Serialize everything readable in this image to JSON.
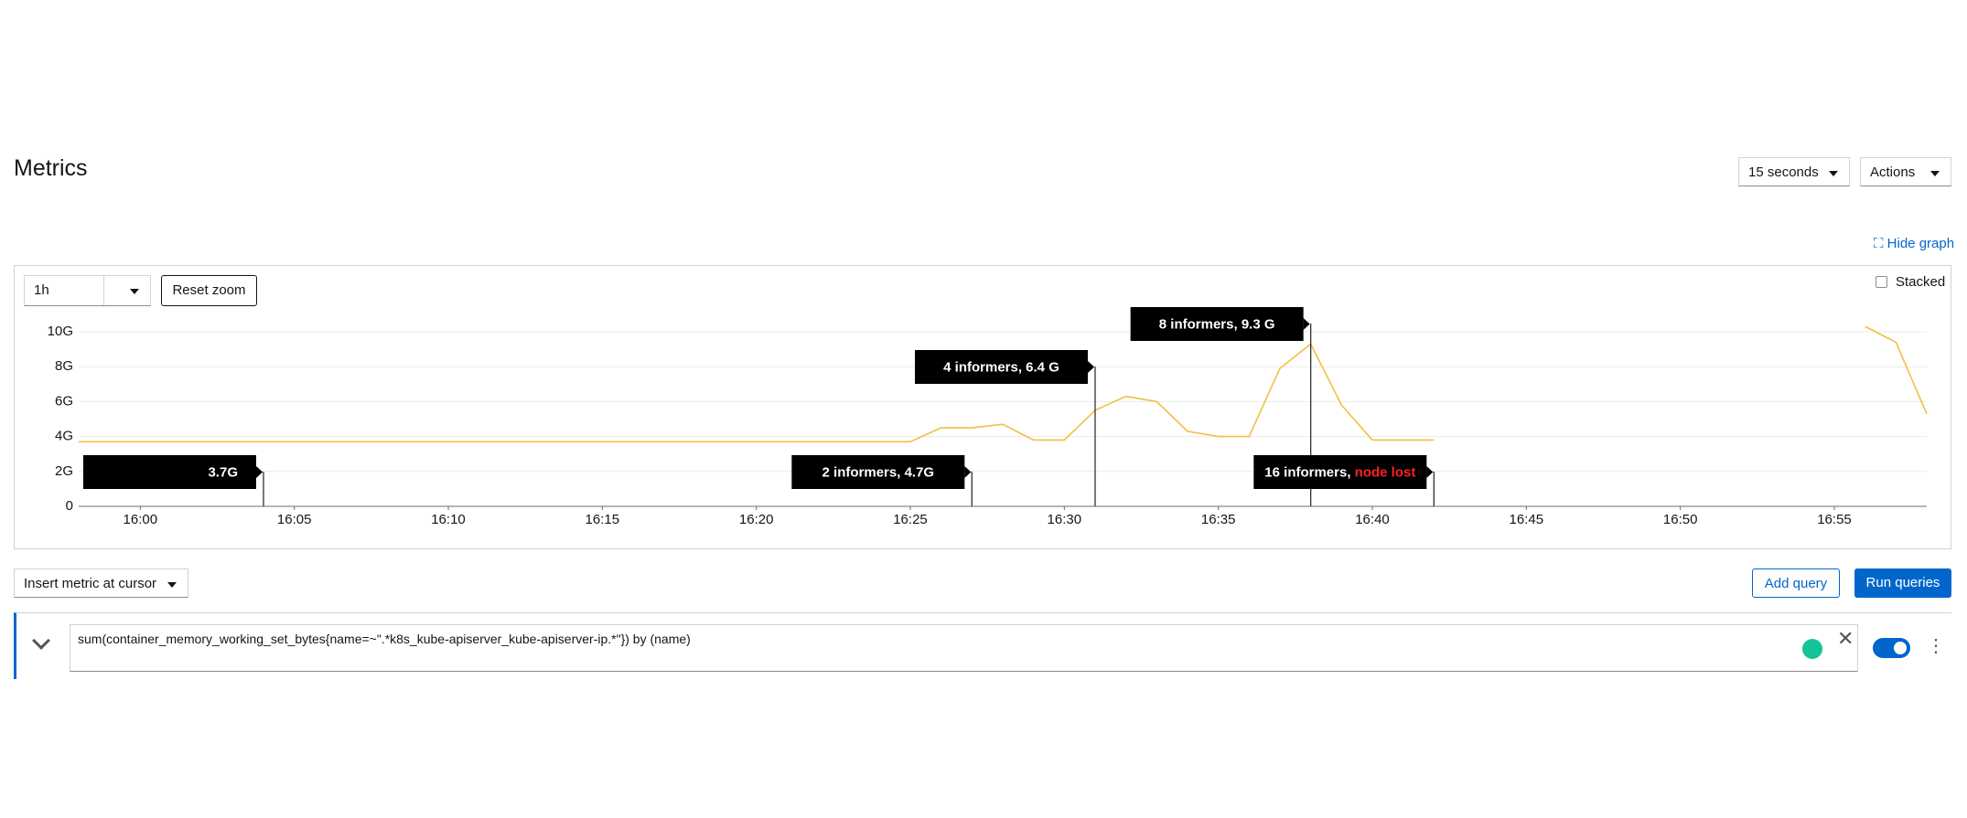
{
  "header": {
    "title": "Metrics",
    "refresh": "15 seconds",
    "actions": "Actions"
  },
  "hide_graph": "Hide graph",
  "controls": {
    "timespan": "1h",
    "reset_zoom": "Reset zoom",
    "stacked": "Stacked"
  },
  "chart_data": {
    "type": "line",
    "x": [
      "15:58",
      "16:25",
      "16:26",
      "16:27",
      "16:28",
      "16:29",
      "16:30",
      "16:31",
      "16:32",
      "16:33",
      "16:34",
      "16:35",
      "16:36",
      "16:37",
      "16:38",
      "16:39",
      "16:40",
      "16:41",
      "16:42",
      "16:43",
      "16:56",
      "16:57",
      "16:58"
    ],
    "series": [
      {
        "color": "#f0c040",
        "values": [
          3.7,
          3.7,
          4.5,
          4.5,
          4.7,
          3.8,
          3.8,
          5.5,
          6.3,
          6.0,
          4.3,
          4.0,
          4.0,
          7.9,
          9.3,
          5.8,
          3.8,
          3.8,
          3.8,
          null,
          10.3,
          9.4,
          5.3
        ]
      }
    ],
    "xlim": [
      "15:58",
      "16:58"
    ],
    "xticks": [
      "16:00",
      "16:05",
      "16:10",
      "16:15",
      "16:20",
      "16:25",
      "16:30",
      "16:35",
      "16:40",
      "16:45",
      "16:50",
      "16:55"
    ],
    "ylim": [
      0,
      10
    ],
    "yticks": [
      0,
      {
        "value": 2,
        "label": "2G"
      },
      {
        "value": 4,
        "label": "4G"
      },
      {
        "value": 6,
        "label": "6G"
      },
      {
        "value": 8,
        "label": "8G"
      },
      {
        "value": 10,
        "label": "10G"
      }
    ],
    "grid": true,
    "annotations": [
      {
        "x": "16:04",
        "parts": [
          {
            "text": "3.7G"
          }
        ]
      },
      {
        "x": "16:27",
        "parts": [
          {
            "text": "2 informers, 4.7G"
          }
        ]
      },
      {
        "x": "16:31",
        "parts": [
          {
            "text": "4 informers, 6.4 G"
          }
        ]
      },
      {
        "x": "16:38",
        "parts": [
          {
            "text": "8 informers, 9.3 G"
          }
        ]
      },
      {
        "x": "16:42",
        "parts": [
          {
            "text": "16 informers, "
          },
          {
            "text": "node lost",
            "color": "#ff2020"
          }
        ]
      }
    ]
  },
  "query": {
    "insert_metric": "Insert metric at cursor",
    "add_query": "Add query",
    "run_queries": "Run queries",
    "expression": "sum(container_memory_working_set_bytes{name=~\".*k8s_kube-apiserver_kube-apiserver-ip.*\"}) by (name)"
  }
}
